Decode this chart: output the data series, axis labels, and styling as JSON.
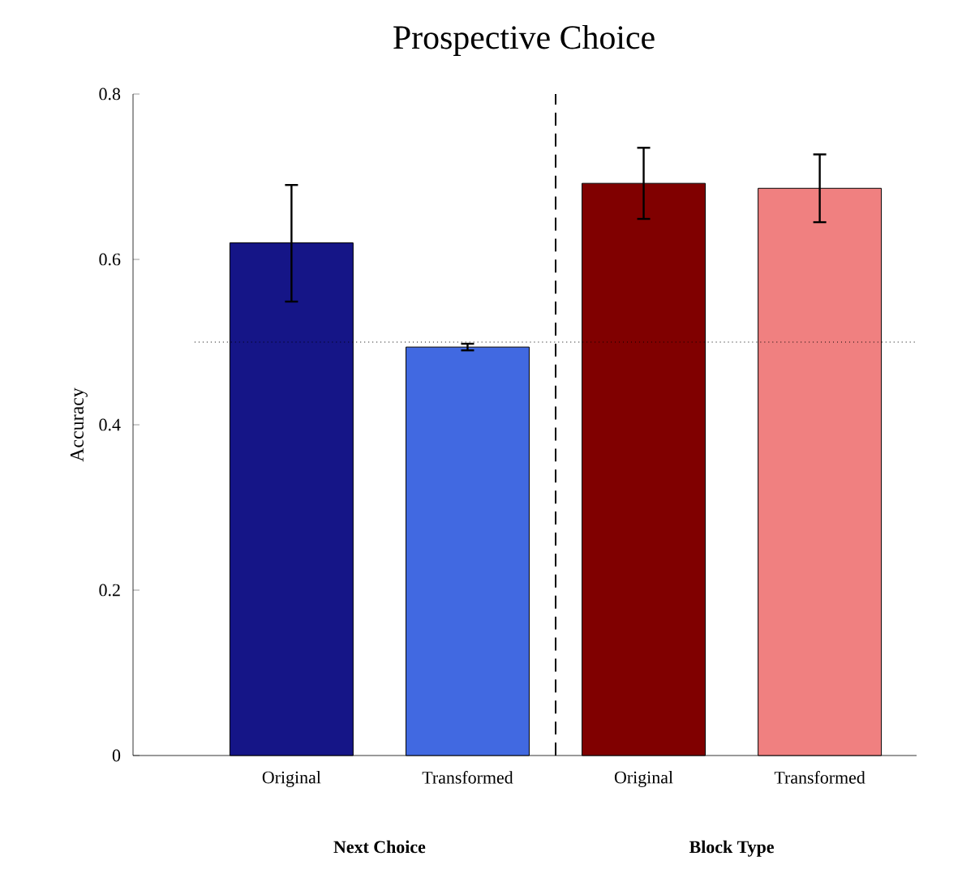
{
  "chart_data": {
    "type": "bar",
    "title": "Prospective Choice",
    "ylabel": "Accuracy",
    "categories": [
      "Original",
      "Transformed",
      "Original",
      "Transformed"
    ],
    "values": [
      0.62,
      0.494,
      0.692,
      0.686
    ],
    "colors": [
      "#151587",
      "#4169e1",
      "#800000",
      "#f08080"
    ],
    "errors": [
      [
        0.549,
        0.69
      ],
      [
        0.49,
        0.498
      ],
      [
        0.649,
        0.735
      ],
      [
        0.645,
        0.727
      ]
    ],
    "ylim": [
      0,
      0.8
    ],
    "yticks": [
      0,
      0.2,
      0.4,
      0.6,
      0.8
    ],
    "ref_lines": [
      {
        "axis": "y",
        "value": 0.5,
        "line_style": "dotted"
      }
    ],
    "annotations": [
      "**Next Choice**",
      "**Block Type**"
    ],
    "grid": false
  }
}
